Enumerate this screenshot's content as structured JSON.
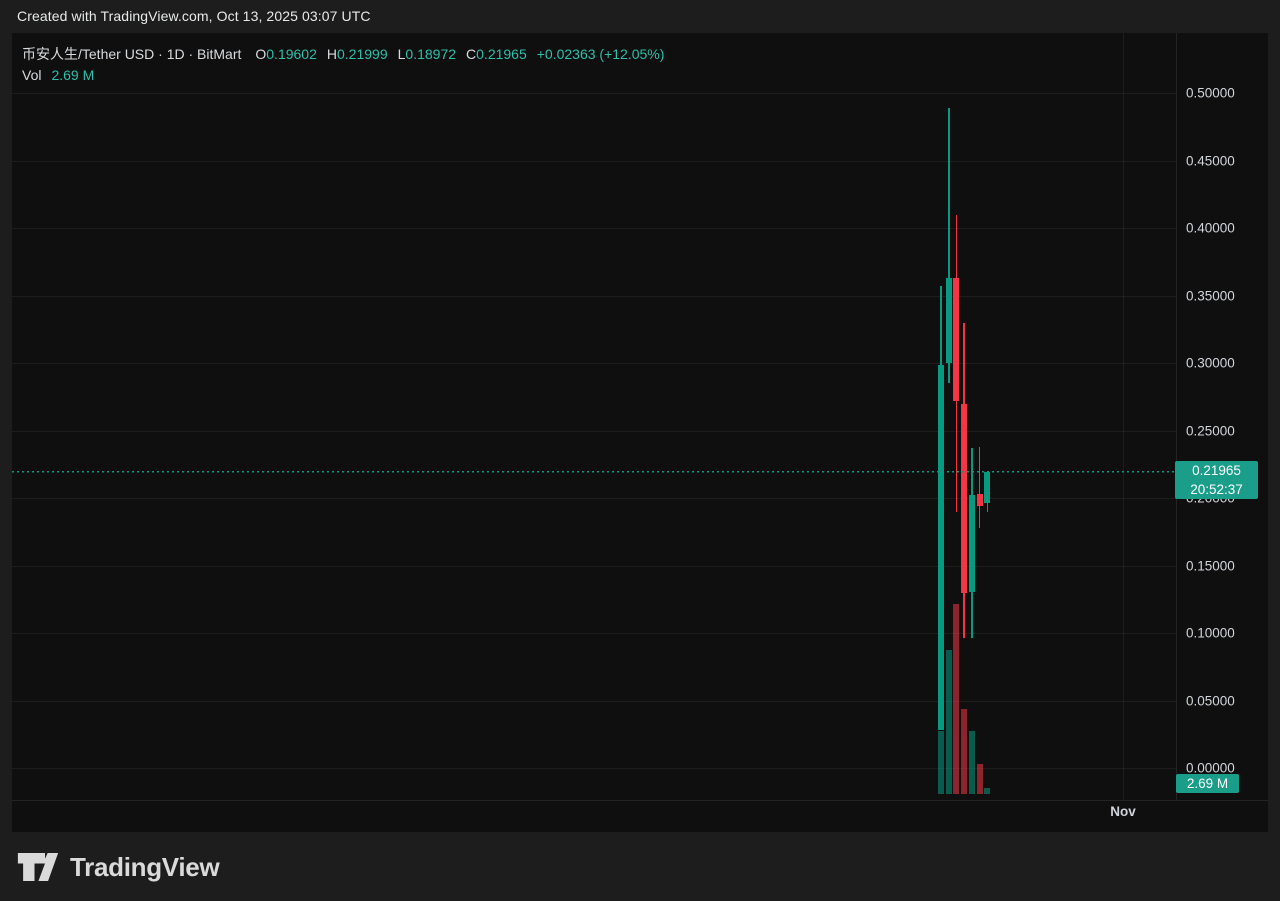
{
  "banner": {
    "text": "Created with TradingView.com, Oct 13, 2025 03:07 UTC"
  },
  "legend": {
    "symbol_title": "币安人生/Tether USD · 1D · BitMart",
    "ohlc": [
      {
        "prefix": "O",
        "value": "0.19602"
      },
      {
        "prefix": "H",
        "value": "0.21999"
      },
      {
        "prefix": "L",
        "value": "0.18972"
      },
      {
        "prefix": "C",
        "value": "0.21965"
      }
    ],
    "change": "+0.02363 (+12.05%)",
    "vol_label": "Vol",
    "vol_value": "2.69 M"
  },
  "price_axis": {
    "ticks": [
      {
        "label": "0.50000",
        "price": 0.5
      },
      {
        "label": "0.45000",
        "price": 0.45
      },
      {
        "label": "0.40000",
        "price": 0.4
      },
      {
        "label": "0.35000",
        "price": 0.35
      },
      {
        "label": "0.30000",
        "price": 0.3
      },
      {
        "label": "0.25000",
        "price": 0.25
      },
      {
        "label": "0.20000",
        "price": 0.2
      },
      {
        "label": "0.15000",
        "price": 0.15
      },
      {
        "label": "0.10000",
        "price": 0.1
      },
      {
        "label": "0.05000",
        "price": 0.05
      },
      {
        "label": "0.00000",
        "price": 0.0
      }
    ]
  },
  "time_axis": {
    "labels": [
      {
        "text": "Nov"
      }
    ]
  },
  "price_line": {
    "price": 0.21965,
    "label": "0.21965",
    "countdown": "20:52:37"
  },
  "volume_badge": "2.69 M",
  "logo": {
    "text": "TradingView"
  },
  "colors": {
    "up": "#089981",
    "down": "#f23645",
    "vol_up": "rgba(8,153,129,0.55)",
    "vol_down": "rgba(242,54,69,0.55)",
    "accent_text": "#2cbfa9",
    "badge_bg": "#1a9e8a"
  },
  "chart_data": {
    "type": "candlestick+volume",
    "title": "币安人生/Tether USD",
    "interval": "1D",
    "exchange": "BitMart",
    "ylim": [
      0.0,
      0.5
    ],
    "grid": true,
    "visible_time_label": "Nov",
    "candles": [
      {
        "o": 0.028,
        "h": 0.357,
        "l": 0.028,
        "c": 0.2985,
        "vol_rel": 0.33
      },
      {
        "o": 0.3,
        "h": 0.489,
        "l": 0.285,
        "c": 0.363,
        "vol_rel": 0.76
      },
      {
        "o": 0.363,
        "h": 0.41,
        "l": 0.19,
        "c": 0.272,
        "vol_rel": 1.0
      },
      {
        "o": 0.27,
        "h": 0.33,
        "l": 0.096,
        "c": 0.13,
        "vol_rel": 0.45
      },
      {
        "o": 0.13,
        "h": 0.237,
        "l": 0.096,
        "c": 0.202,
        "vol_rel": 0.33
      },
      {
        "o": 0.203,
        "h": 0.238,
        "l": 0.178,
        "c": 0.194,
        "vol_rel": 0.16
      },
      {
        "o": 0.19602,
        "h": 0.21999,
        "l": 0.18972,
        "c": 0.21965,
        "vol_rel": 0.03
      }
    ],
    "last_price": 0.21965,
    "last_volume_label": "2.69 M"
  }
}
